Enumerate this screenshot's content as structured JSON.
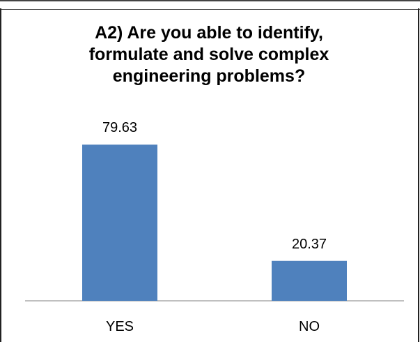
{
  "chart_data": {
    "type": "bar",
    "title": "A2) Are you able to identify,\nformulate and solve complex\nengineering problems?",
    "categories": [
      "YES",
      "NO"
    ],
    "values": [
      79.63,
      20.37
    ],
    "data_labels": [
      "79.63",
      "20.37"
    ],
    "ylim": [
      0,
      100
    ],
    "grid": false,
    "legend": "none",
    "bar_color": "#4F81BD"
  }
}
